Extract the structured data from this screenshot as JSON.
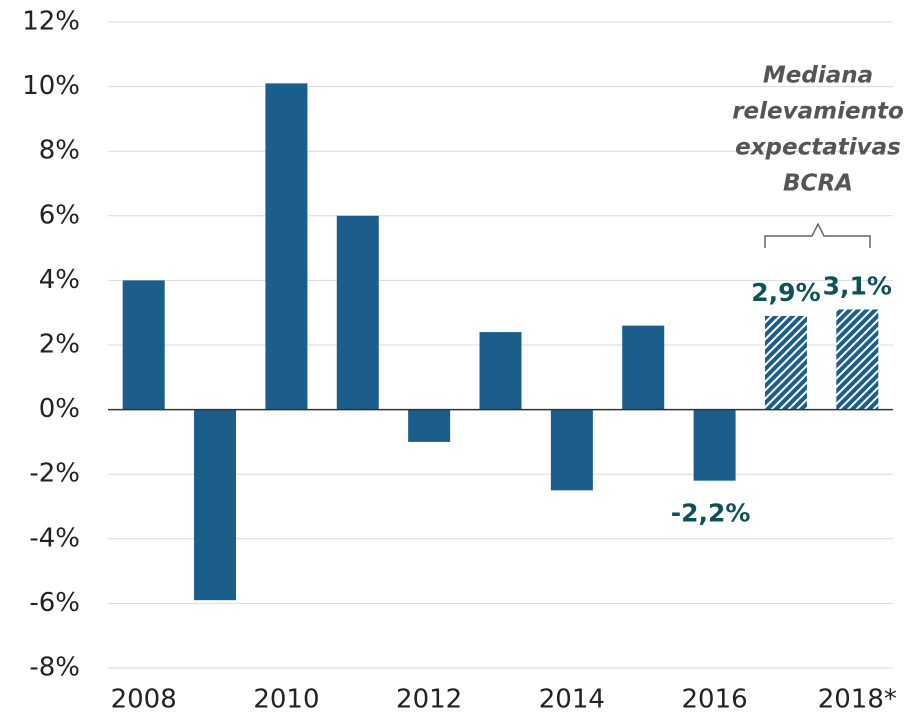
{
  "chart_data": {
    "type": "bar",
    "categories": [
      "2008",
      null,
      "2010",
      null,
      "2012",
      null,
      "2014",
      null,
      "2016",
      null,
      "2018*"
    ],
    "values": [
      4.0,
      -5.9,
      10.1,
      6.0,
      -1.0,
      2.4,
      -2.5,
      2.6,
      -2.2,
      2.9,
      3.1
    ],
    "value_labels": [
      null,
      null,
      null,
      null,
      null,
      null,
      null,
      null,
      "-2,2%",
      "2,9%",
      "3,1%"
    ],
    "patterns": [
      "solid",
      "solid",
      "solid",
      "solid",
      "solid",
      "solid",
      "solid",
      "solid",
      "solid",
      "hatch",
      "hatch"
    ],
    "color": "#1b5e8b",
    "ylim": [
      -8,
      12
    ],
    "yticks": [
      {
        "value": -8,
        "label": "-8%"
      },
      {
        "value": -6,
        "label": "-6%"
      },
      {
        "value": -4,
        "label": "-4%"
      },
      {
        "value": -2,
        "label": "-2%"
      },
      {
        "value": 0,
        "label": "0%"
      },
      {
        "value": 2,
        "label": "2%"
      },
      {
        "value": 4,
        "label": "4%"
      },
      {
        "value": 6,
        "label": "6%"
      },
      {
        "value": 8,
        "label": "8%"
      },
      {
        "value": 10,
        "label": "10%"
      },
      {
        "value": 12,
        "label": "12%"
      }
    ],
    "grid": true,
    "annotation": [
      "Mediana",
      "relevamiento",
      "expectativas",
      "BCRA"
    ]
  }
}
